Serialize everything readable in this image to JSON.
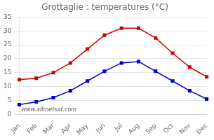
{
  "chart_data": {
    "type": "line",
    "title": "Grottaglie : temperatures (°C)",
    "categories": [
      "Jan",
      "Feb",
      "Mar",
      "Apr",
      "May",
      "Jun",
      "Jul",
      "Aug",
      "Sep",
      "Oct",
      "Nov",
      "Dec"
    ],
    "series": [
      {
        "color": "#cc0000",
        "marker": "square",
        "values": [
          12.5,
          13.0,
          15.0,
          18.5,
          23.5,
          28.5,
          31.0,
          31.0,
          27.5,
          22.0,
          17.0,
          13.5
        ]
      },
      {
        "color": "#0000cc",
        "marker": "square",
        "values": [
          3.5,
          4.5,
          6.0,
          8.5,
          12.0,
          15.5,
          18.5,
          19.0,
          15.5,
          12.0,
          8.5,
          5.5
        ]
      }
    ],
    "ylim": [
      0,
      35
    ],
    "yticks": [
      0,
      5,
      10,
      15,
      20,
      25,
      30,
      35
    ],
    "grid": "y",
    "annotation": "www.allmetsat.com"
  }
}
